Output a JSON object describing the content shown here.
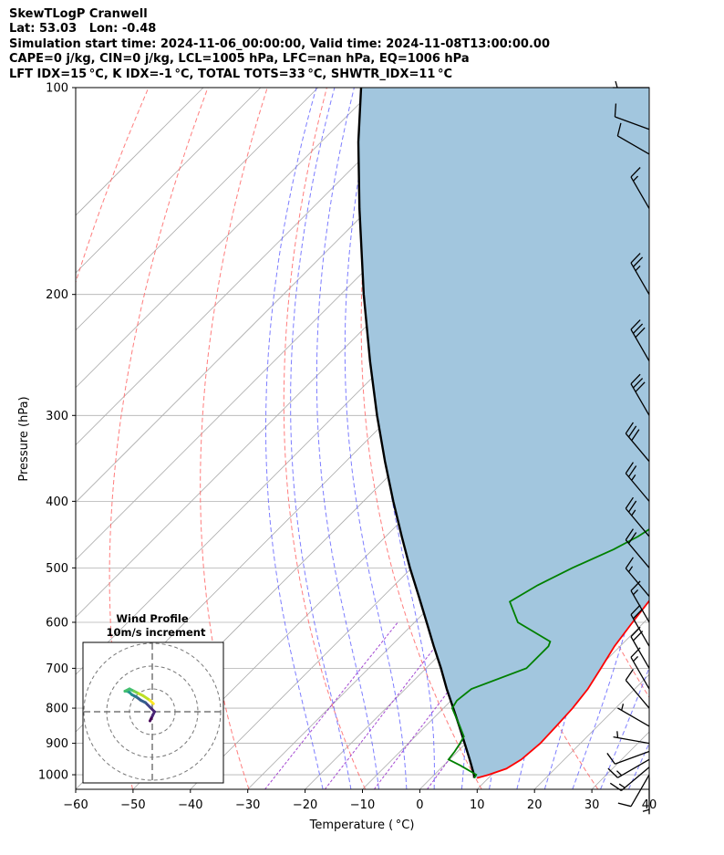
{
  "header": {
    "line1": "SkewTLogP Cranwell",
    "line2": "Lat: 53.03   Lon: -0.48",
    "line3": "Simulation start time: 2024-11-06_00:00:00, Valid time: 2024-11-08T13:00:00.00",
    "line4": "CAPE=0 j/kg, CIN=0 j/kg, LCL=1005 hPa, LFC=nan hPa, EQ=1006 hPa",
    "line5": "LFT IDX=15 °C, K IDX=-1 °C, TOTAL TOTS=33 °C, SHWTR_IDX=11 °C"
  },
  "colors": {
    "temperature": "#ff0000",
    "dewpoint": "#008000",
    "parcel": "#000000",
    "shade": "#a2c6de",
    "dry_adiabat": "#ff6666",
    "moist_adiabat": "#6666ff",
    "mixing_ratio": "#9933cc",
    "isotherm": "#aaaaaa",
    "grid": "#b0b0b0"
  },
  "chart_data": {
    "type": "skewt",
    "xlabel": "Temperature ( °C)",
    "ylabel": "Pressure (hPa)",
    "xlim": [
      -60,
      40
    ],
    "ylim": [
      1050,
      100
    ],
    "yscale": "log",
    "x_ticks": [
      "−60",
      "−50",
      "−40",
      "−30",
      "−20",
      "−10",
      "0",
      "10",
      "20",
      "30",
      "40"
    ],
    "x_tick_values": [
      -60,
      -50,
      -40,
      -30,
      -20,
      -10,
      0,
      10,
      20,
      30,
      40
    ],
    "y_ticks": [
      "100",
      "200",
      "300",
      "400",
      "500",
      "600",
      "700",
      "800",
      "900",
      "1000"
    ],
    "y_tick_values": [
      100,
      200,
      300,
      400,
      500,
      600,
      700,
      800,
      900,
      1000
    ],
    "skew": 1.0,
    "temperature_profile": [
      [
        1011,
        8.0
      ],
      [
        1000,
        9.5
      ],
      [
        980,
        11.5
      ],
      [
        950,
        12.5
      ],
      [
        900,
        13.0
      ],
      [
        850,
        12.8
      ],
      [
        800,
        12.5
      ],
      [
        750,
        11.8
      ],
      [
        700,
        10.5
      ],
      [
        650,
        9.0
      ],
      [
        600,
        8.0
      ],
      [
        550,
        7.0
      ],
      [
        500,
        5.0
      ],
      [
        450,
        3.0
      ],
      [
        420,
        1.5
      ],
      [
        400,
        0.5
      ],
      [
        350,
        -3.0
      ],
      [
        320,
        -5.8
      ],
      [
        300,
        -7.5
      ],
      [
        280,
        -7.5
      ],
      [
        260,
        -7.5
      ],
      [
        240,
        -7.8
      ],
      [
        220,
        -7.5
      ],
      [
        200,
        -6.0
      ],
      [
        180,
        -4.0
      ],
      [
        170,
        -3.0
      ],
      [
        150,
        -1.5
      ],
      [
        130,
        0.5
      ],
      [
        115,
        3.0
      ],
      [
        100,
        5.5
      ]
    ],
    "dewpoint_profile": [
      [
        1011,
        7.5
      ],
      [
        1000,
        7.3
      ],
      [
        970,
        3.0
      ],
      [
        950,
        -0.2
      ],
      [
        925,
        -0.5
      ],
      [
        900,
        -1.0
      ],
      [
        880,
        -1.5
      ],
      [
        850,
        -4.0
      ],
      [
        800,
        -8.5
      ],
      [
        780,
        -9.0
      ],
      [
        750,
        -8.5
      ],
      [
        700,
        -2.5
      ],
      [
        650,
        -2.5
      ],
      [
        640,
        -3.0
      ],
      [
        600,
        -12.0
      ],
      [
        560,
        -17.0
      ],
      [
        530,
        -15.0
      ],
      [
        500,
        -12.0
      ],
      [
        470,
        -8.0
      ],
      [
        450,
        -6.0
      ],
      [
        420,
        -4.0
      ],
      [
        400,
        -6.0
      ],
      [
        370,
        -9.0
      ],
      [
        340,
        -10.0
      ],
      [
        310,
        -10.0
      ],
      [
        290,
        -10.0
      ],
      [
        270,
        -14.0
      ],
      [
        250,
        -12.0
      ],
      [
        230,
        -10.0
      ],
      [
        210,
        -10.0
      ],
      [
        190,
        -10.0
      ],
      [
        170,
        -11.0
      ],
      [
        160,
        -11.0
      ],
      [
        150,
        -11.0
      ],
      [
        140,
        -10.5
      ],
      [
        130,
        -9.0
      ],
      [
        115,
        -7.0
      ],
      [
        100,
        -5.0
      ]
    ],
    "parcel_profile": [
      [
        1011,
        7.5
      ],
      [
        1000,
        6.9
      ],
      [
        950,
        3.5
      ],
      [
        900,
        -0.2
      ],
      [
        850,
        -4.1
      ],
      [
        800,
        -8.3
      ],
      [
        750,
        -12.8
      ],
      [
        700,
        -17.4
      ],
      [
        650,
        -22.5
      ],
      [
        600,
        -27.9
      ],
      [
        550,
        -33.8
      ],
      [
        500,
        -40.3
      ],
      [
        450,
        -47.2
      ],
      [
        400,
        -54.8
      ],
      [
        350,
        -63.2
      ],
      [
        300,
        -72.6
      ],
      [
        250,
        -83.3
      ],
      [
        200,
        -96.0
      ],
      [
        150,
        -111.7
      ],
      [
        120,
        -123.5
      ],
      [
        100,
        -132.5
      ]
    ],
    "wind_barbs": {
      "pressures": [
        1010,
        1000,
        975,
        950,
        925,
        900,
        850,
        800,
        750,
        700,
        650,
        600,
        550,
        500,
        450,
        400,
        350,
        300,
        250,
        200,
        150,
        125,
        115,
        100
      ],
      "speed_kt": [
        5,
        10,
        15,
        15,
        10,
        5,
        5,
        10,
        15,
        20,
        20,
        15,
        15,
        20,
        25,
        25,
        30,
        30,
        30,
        25,
        15,
        10,
        10,
        5
      ],
      "direction_deg": [
        180,
        210,
        230,
        240,
        250,
        280,
        300,
        320,
        330,
        330,
        330,
        330,
        320,
        320,
        320,
        320,
        320,
        330,
        330,
        330,
        330,
        300,
        290,
        270
      ]
    },
    "hodograph": {
      "title": "Wind Profile",
      "subtitle": "10m/s increment",
      "rings_ms": [
        10,
        20,
        30
      ],
      "u": [
        -1.0,
        0.0,
        1.0,
        -1.0,
        -3.0,
        -5.0,
        -7.0,
        -9.0,
        -10.0,
        -11.0,
        -12.0,
        -10.0,
        -8.0,
        -6.0,
        -4.0,
        -1.0,
        0.5
      ],
      "v": [
        -4.0,
        -2.0,
        0.0,
        2.0,
        4.0,
        5.0,
        6.5,
        7.5,
        8.5,
        9.0,
        9.0,
        10.0,
        9.0,
        8.0,
        7.0,
        5.0,
        3.5
      ]
    }
  }
}
